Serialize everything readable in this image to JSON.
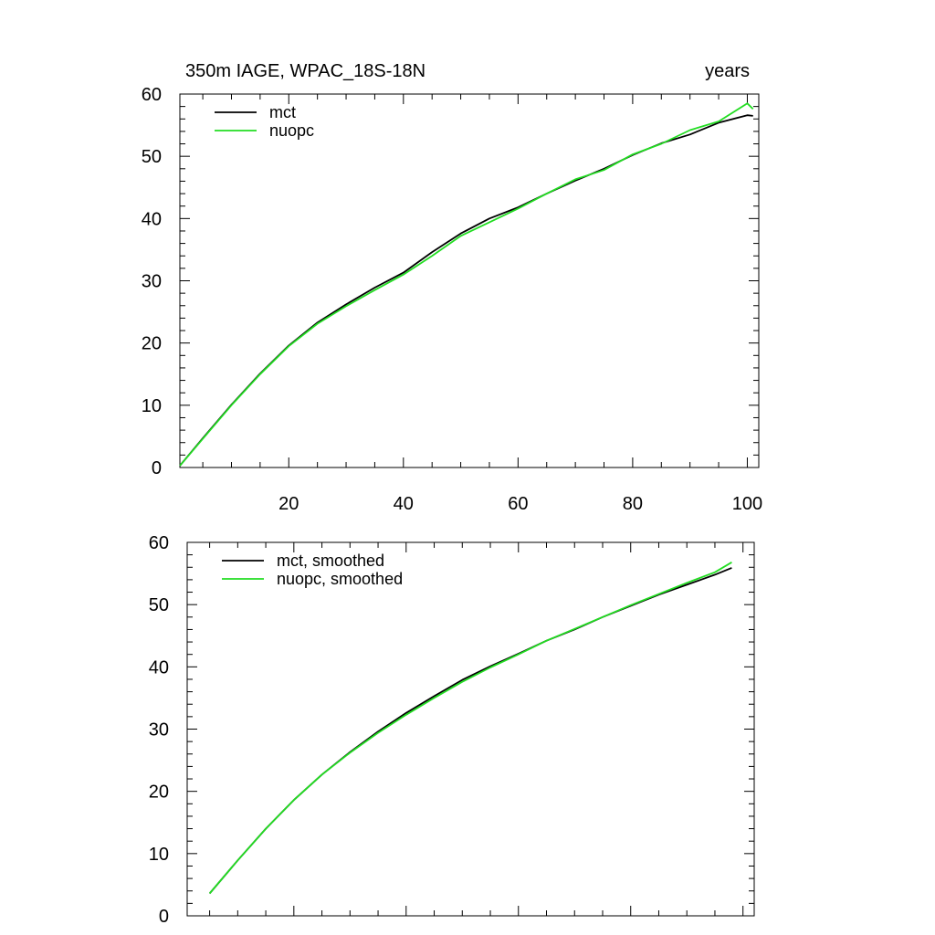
{
  "chart_data": [
    {
      "type": "line",
      "left_title": "350m IAGE, WPAC_18S-18N",
      "right_title": "years",
      "xlim": [
        1,
        102
      ],
      "ylim": [
        0,
        60
      ],
      "x_ticks": [
        20,
        40,
        60,
        80,
        100
      ],
      "x_tick_labels": [
        "20",
        "40",
        "60",
        "80",
        "100"
      ],
      "y_ticks": [
        0,
        10,
        20,
        30,
        40,
        50,
        60
      ],
      "y_tick_labels": [
        "0",
        "10",
        "20",
        "30",
        "40",
        "50",
        "60"
      ],
      "grid": false,
      "legend_position": "top-left",
      "x": [
        1,
        5,
        10,
        15,
        20,
        25,
        30,
        35,
        40,
        45,
        50,
        55,
        60,
        65,
        70,
        75,
        80,
        85,
        90,
        95,
        100,
        101
      ],
      "series": [
        {
          "name": "mct",
          "color": "#000000",
          "values": [
            0.3,
            4.7,
            10.1,
            15.1,
            19.6,
            23.3,
            26.2,
            28.9,
            31.3,
            34.6,
            37.6,
            40.0,
            41.8,
            44.0,
            46.1,
            48.0,
            50.2,
            52.1,
            53.5,
            55.4,
            56.6,
            56.5
          ]
        },
        {
          "name": "nuopc",
          "color": "#22dd22",
          "values": [
            0.3,
            4.6,
            10.0,
            15.0,
            19.5,
            23.1,
            25.9,
            28.5,
            31.0,
            34.0,
            37.2,
            39.4,
            41.6,
            44.0,
            46.3,
            47.8,
            50.3,
            52.0,
            54.2,
            55.6,
            58.5,
            57.6
          ]
        }
      ]
    },
    {
      "type": "line",
      "xlim": [
        1,
        102
      ],
      "ylim": [
        0,
        60
      ],
      "y_ticks": [
        0,
        10,
        20,
        30,
        40,
        50,
        60
      ],
      "y_tick_labels": [
        "0",
        "10",
        "20",
        "30",
        "40",
        "50",
        "60"
      ],
      "grid": false,
      "legend_position": "top-left",
      "x": [
        5,
        10,
        15,
        20,
        25,
        30,
        35,
        40,
        45,
        50,
        55,
        60,
        65,
        70,
        75,
        80,
        85,
        90,
        95,
        98
      ],
      "series": [
        {
          "name": "mct, smoothed",
          "color": "#000000",
          "values": [
            3.6,
            8.9,
            14.0,
            18.6,
            22.7,
            26.3,
            29.6,
            32.6,
            35.3,
            37.9,
            40.1,
            42.1,
            44.2,
            46.0,
            48.0,
            49.8,
            51.6,
            53.2,
            54.8,
            55.9
          ]
        },
        {
          "name": "nuopc, smoothed",
          "color": "#22dd22",
          "values": [
            3.6,
            8.9,
            14.0,
            18.6,
            22.7,
            26.2,
            29.4,
            32.3,
            35.0,
            37.6,
            39.9,
            42.0,
            44.2,
            46.1,
            48.0,
            49.9,
            51.7,
            53.5,
            55.2,
            56.8
          ]
        }
      ]
    }
  ]
}
